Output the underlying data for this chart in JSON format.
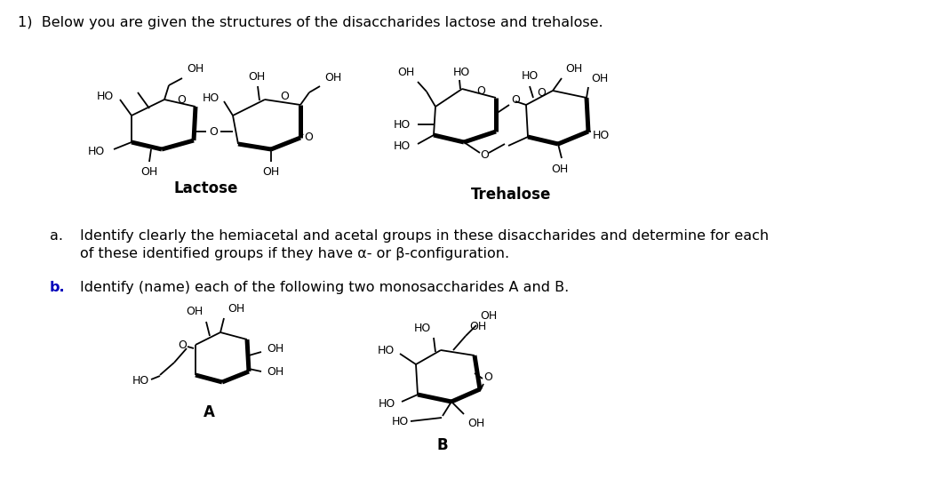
{
  "title": "1)  Below you are given the structures of the disaccharides lactose and trehalose.",
  "label_a": "a.",
  "text_a1": "Identify clearly the hemiacetal and acetal groups in these disaccharides and determine for each",
  "text_a2": "of these identified groups if they have α- or β-configuration.",
  "label_b": "b.",
  "text_b": "Identify (name) each of the following two monosaccharides A and B.",
  "lactose_label": "Lactose",
  "trehalose_label": "Trehalose",
  "label_A": "A",
  "label_B": "B",
  "bg": "#ffffff",
  "black": "#000000",
  "blue": "#0000bb"
}
